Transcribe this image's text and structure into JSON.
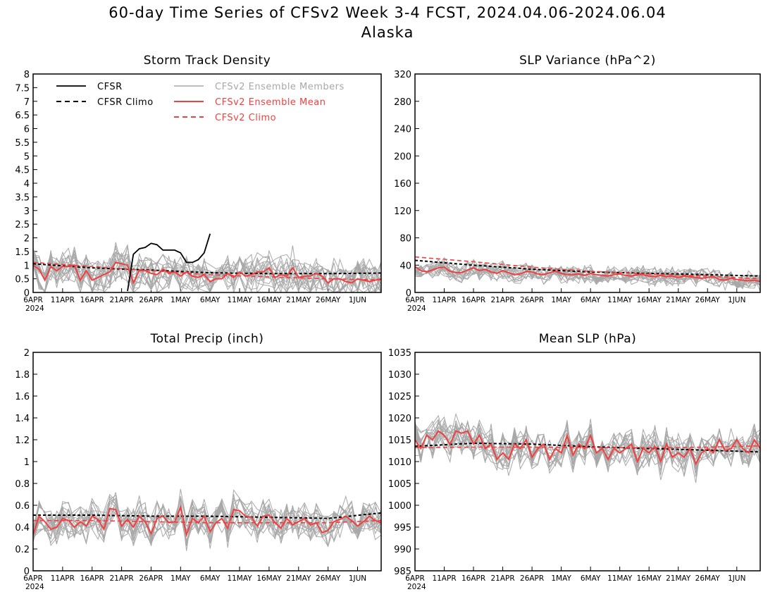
{
  "header": {
    "title_line1": "60-day Time Series of CFSv2 Week 3-4 FCST, 2024.04.06-2024.06.04",
    "title_line2": "Alaska"
  },
  "colors": {
    "cfsr": "#000000",
    "cfsr_climo": "#000000",
    "members": "#a8a8a8",
    "ens_mean": "#f04040",
    "cfsv2_climo": "#f04040"
  },
  "legend": {
    "cfsr": "CFSR",
    "cfsr_climo": "CFSR Climo",
    "members": "CFSv2 Ensemble Members",
    "ens_mean": "CFSv2 Ensemble Mean",
    "cfsv2_climo": "CFSv2 Climo"
  },
  "chart_data": [
    {
      "type": "line",
      "title": "Storm Track Density",
      "x_ticks": [
        "6APR",
        "11APR",
        "16APR",
        "21APR",
        "26APR",
        "1MAY",
        "6MAY",
        "11MAY",
        "16MAY",
        "21MAY",
        "26MAY",
        "1JUN"
      ],
      "x_year": "2024",
      "x_range_days": [
        0,
        59
      ],
      "ylim": [
        0,
        8
      ],
      "y_ticks": [
        "0",
        "0.5",
        "1",
        "1.5",
        "2",
        "2.5",
        "3",
        "3.5",
        "4",
        "4.5",
        "5",
        "5.5",
        "6",
        "6.5",
        "7",
        "7.5",
        "8"
      ],
      "legend": "top-left",
      "member_count": 16,
      "member_spread": 0.6,
      "cfsr": {
        "x": [
          16,
          17,
          18,
          19,
          20,
          21,
          22,
          23,
          24,
          25,
          26,
          27,
          28,
          29,
          30
        ],
        "y": [
          0.05,
          1.4,
          1.6,
          1.65,
          1.8,
          1.75,
          1.55,
          1.55,
          1.55,
          1.45,
          1.1,
          1.1,
          1.2,
          1.45,
          2.15
        ]
      },
      "cfsr_climo": {
        "x": [
          0,
          10,
          20,
          30,
          40,
          50,
          59
        ],
        "y": [
          1.05,
          0.9,
          0.82,
          0.72,
          0.69,
          0.69,
          0.71
        ]
      },
      "cfsv2_climo": {
        "x": [
          0,
          10,
          20,
          30,
          40,
          50,
          59
        ],
        "y": [
          1.1,
          0.95,
          0.8,
          0.65,
          0.57,
          0.5,
          0.46
        ]
      },
      "ens_mean": {
        "x": [
          0,
          1,
          2,
          3,
          4,
          5,
          6,
          7,
          8,
          9,
          10,
          11,
          12,
          13,
          14,
          15,
          16,
          17,
          18,
          19,
          20,
          21,
          22,
          23,
          24,
          25,
          26,
          27,
          28,
          29,
          30,
          31,
          32,
          33,
          34,
          35,
          36,
          37,
          38,
          39,
          40,
          41,
          42,
          43,
          44,
          45,
          46,
          47,
          48,
          49,
          50,
          51,
          52,
          53,
          54,
          55,
          56,
          57,
          58,
          59
        ],
        "y": [
          1.0,
          0.85,
          0.45,
          0.95,
          0.8,
          0.95,
          0.95,
          1.0,
          0.45,
          0.8,
          0.45,
          0.55,
          0.65,
          0.75,
          1.1,
          1.05,
          1.0,
          0.35,
          0.8,
          0.8,
          0.7,
          0.65,
          0.85,
          0.7,
          0.75,
          0.6,
          0.75,
          0.6,
          0.55,
          0.65,
          0.4,
          0.5,
          0.5,
          0.7,
          0.55,
          0.75,
          0.6,
          0.65,
          0.75,
          0.75,
          0.9,
          0.55,
          0.65,
          0.6,
          0.9,
          0.55,
          0.6,
          0.6,
          0.7,
          0.6,
          0.35,
          0.5,
          0.5,
          0.4,
          0.35,
          0.5,
          0.45,
          0.4,
          0.45,
          0.5
        ]
      }
    },
    {
      "type": "line",
      "title": "SLP Variance (hPa^2)",
      "x_ticks": [
        "6APR",
        "11APR",
        "16APR",
        "21APR",
        "26APR",
        "1MAY",
        "6MAY",
        "11MAY",
        "16MAY",
        "21MAY",
        "26MAY",
        "1JUN"
      ],
      "x_year": "2024",
      "x_range_days": [
        0,
        59
      ],
      "ylim": [
        0,
        320
      ],
      "y_ticks": [
        "0",
        "40",
        "80",
        "120",
        "160",
        "200",
        "240",
        "280",
        "320"
      ],
      "member_count": 16,
      "member_spread": 11,
      "cfsr_climo": {
        "x": [
          0,
          10,
          20,
          30,
          40,
          50,
          59
        ],
        "y": [
          47,
          40,
          34,
          30,
          28,
          26,
          24
        ]
      },
      "cfsv2_climo": {
        "x": [
          0,
          10,
          20,
          30,
          40,
          50,
          59
        ],
        "y": [
          52,
          45,
          37,
          31,
          27,
          24,
          20
        ]
      },
      "ens_mean": {
        "x": [
          0,
          1,
          2,
          3,
          4,
          5,
          6,
          7,
          8,
          9,
          10,
          11,
          12,
          13,
          14,
          15,
          16,
          17,
          18,
          19,
          20,
          21,
          22,
          23,
          24,
          25,
          26,
          27,
          28,
          29,
          30,
          31,
          32,
          33,
          34,
          35,
          36,
          37,
          38,
          39,
          40,
          41,
          42,
          43,
          44,
          45,
          46,
          47,
          48,
          49,
          50,
          51,
          52,
          53,
          54,
          55,
          56,
          57,
          58,
          59
        ],
        "y": [
          38,
          32,
          30,
          33,
          36,
          37,
          31,
          29,
          29,
          33,
          36,
          32,
          34,
          30,
          28,
          32,
          29,
          26,
          27,
          31,
          30,
          27,
          26,
          29,
          31,
          28,
          26,
          26,
          27,
          25,
          28,
          26,
          25,
          24,
          26,
          27,
          25,
          24,
          26,
          26,
          24,
          23,
          25,
          23,
          24,
          22,
          24,
          23,
          22,
          21,
          22,
          23,
          19,
          18,
          21,
          19,
          18,
          17,
          18,
          16
        ]
      }
    },
    {
      "type": "line",
      "title": "Total Precip (inch)",
      "x_ticks": [
        "6APR",
        "11APR",
        "16APR",
        "21APR",
        "26APR",
        "1MAY",
        "6MAY",
        "11MAY",
        "16MAY",
        "21MAY",
        "26MAY",
        "1JUN"
      ],
      "x_year": "2024",
      "x_range_days": [
        0,
        59
      ],
      "ylim": [
        0,
        2
      ],
      "y_ticks": [
        "0",
        "0.2",
        "0.4",
        "0.6",
        "0.8",
        "1",
        "1.2",
        "1.4",
        "1.6",
        "1.8",
        "2"
      ],
      "member_count": 16,
      "member_spread": 0.14,
      "cfsr_climo": {
        "x": [
          0,
          10,
          20,
          30,
          40,
          50,
          59
        ],
        "y": [
          0.51,
          0.51,
          0.5,
          0.5,
          0.49,
          0.48,
          0.53
        ]
      },
      "cfsv2_climo": {
        "x": [
          0,
          10,
          20,
          30,
          40,
          50,
          59
        ],
        "y": [
          0.46,
          0.46,
          0.45,
          0.44,
          0.44,
          0.44,
          0.46
        ]
      },
      "ens_mean": {
        "x": [
          0,
          1,
          2,
          3,
          4,
          5,
          6,
          7,
          8,
          9,
          10,
          11,
          12,
          13,
          14,
          15,
          16,
          17,
          18,
          19,
          20,
          21,
          22,
          23,
          24,
          25,
          26,
          27,
          28,
          29,
          30,
          31,
          32,
          33,
          34,
          35,
          36,
          37,
          38,
          39,
          40,
          41,
          42,
          43,
          44,
          45,
          46,
          47,
          48,
          49,
          50,
          51,
          52,
          53,
          54,
          55,
          56,
          57,
          58,
          59
        ],
        "y": [
          0.33,
          0.5,
          0.45,
          0.38,
          0.4,
          0.48,
          0.46,
          0.4,
          0.45,
          0.41,
          0.5,
          0.47,
          0.38,
          0.57,
          0.56,
          0.41,
          0.47,
          0.4,
          0.5,
          0.45,
          0.34,
          0.48,
          0.5,
          0.44,
          0.45,
          0.58,
          0.33,
          0.48,
          0.44,
          0.5,
          0.36,
          0.44,
          0.48,
          0.39,
          0.56,
          0.55,
          0.5,
          0.49,
          0.41,
          0.5,
          0.51,
          0.44,
          0.39,
          0.48,
          0.42,
          0.45,
          0.48,
          0.42,
          0.44,
          0.35,
          0.37,
          0.45,
          0.47,
          0.5,
          0.46,
          0.41,
          0.45,
          0.5,
          0.46,
          0.44
        ]
      }
    },
    {
      "type": "line",
      "title": "Mean SLP (hPa)",
      "x_ticks": [
        "6APR",
        "11APR",
        "16APR",
        "21APR",
        "26APR",
        "1MAY",
        "6MAY",
        "11MAY",
        "16MAY",
        "21MAY",
        "26MAY",
        "1JUN"
      ],
      "x_year": "2024",
      "x_range_days": [
        0,
        59
      ],
      "ylim": [
        985,
        1035
      ],
      "y_ticks": [
        "985",
        "990",
        "995",
        "1000",
        "1005",
        "1010",
        "1015",
        "1020",
        "1025",
        "1030",
        "1035"
      ],
      "member_count": 16,
      "member_spread": 3.5,
      "cfsr_climo": {
        "x": [
          0,
          10,
          20,
          30,
          40,
          50,
          59
        ],
        "y": [
          1013.5,
          1014.2,
          1014.0,
          1013.4,
          1013.0,
          1012.6,
          1012.2
        ]
      },
      "cfsv2_climo": {
        "x": [
          0,
          10,
          20,
          30,
          40,
          50,
          59
        ],
        "y": [
          1013.2,
          1013.3,
          1013.3,
          1013.2,
          1013.2,
          1013.3,
          1013.6
        ]
      },
      "ens_mean": {
        "x": [
          0,
          1,
          2,
          3,
          4,
          5,
          6,
          7,
          8,
          9,
          10,
          11,
          12,
          13,
          14,
          15,
          16,
          17,
          18,
          19,
          20,
          21,
          22,
          23,
          24,
          25,
          26,
          27,
          28,
          29,
          30,
          31,
          32,
          33,
          34,
          35,
          36,
          37,
          38,
          39,
          40,
          41,
          42,
          43,
          44,
          45,
          46,
          47,
          48,
          49,
          50,
          51,
          52,
          53,
          54,
          55,
          56,
          57,
          58,
          59
        ],
        "y": [
          1015.0,
          1013.0,
          1016.0,
          1015.0,
          1017.0,
          1016.0,
          1014.0,
          1017.0,
          1016.5,
          1017.0,
          1014.0,
          1016.0,
          1013.0,
          1014.0,
          1010.5,
          1012.0,
          1010.5,
          1014.0,
          1013.0,
          1015.0,
          1011.0,
          1013.0,
          1014.0,
          1010.5,
          1013.0,
          1012.0,
          1016.0,
          1011.5,
          1014.0,
          1013.0,
          1016.0,
          1012.0,
          1013.0,
          1010.5,
          1013.0,
          1012.0,
          1013.0,
          1014.0,
          1010.0,
          1013.0,
          1012.0,
          1013.5,
          1010.0,
          1014.0,
          1011.0,
          1012.0,
          1011.0,
          1013.0,
          1009.5,
          1012.0,
          1013.0,
          1012.0,
          1015.0,
          1012.5,
          1013.0,
          1015.0,
          1013.0,
          1012.0,
          1015.0,
          1013.0
        ]
      }
    }
  ]
}
